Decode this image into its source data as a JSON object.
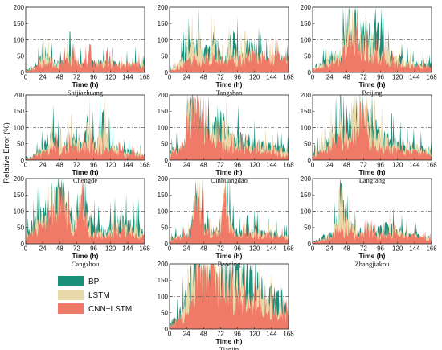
{
  "chart_data": {
    "type": "area",
    "ylabel": "Relative Error (%)",
    "xlabel": "Time (h)",
    "xticks": [
      0,
      24,
      48,
      72,
      96,
      120,
      144,
      168
    ],
    "yticks": [
      0,
      50,
      100,
      150,
      200
    ],
    "xlim": [
      0,
      168
    ],
    "ylim": [
      0,
      200
    ],
    "reference_line": 100,
    "series": [
      {
        "name": "BP",
        "color": "#1a8f7a"
      },
      {
        "name": "LSTM",
        "color": "#ead9a8"
      },
      {
        "name": "CNN−LSTM",
        "color": "#f07a68"
      }
    ],
    "panels": [
      {
        "city": "Shijiazhuang",
        "BP": [
          10,
          15,
          40,
          70,
          35,
          30,
          70,
          40,
          35,
          30,
          35,
          35,
          40,
          30,
          30,
          35,
          40,
          25
        ],
        "LSTM": [
          8,
          12,
          35,
          60,
          30,
          28,
          60,
          35,
          30,
          28,
          30,
          30,
          35,
          28,
          28,
          30,
          35,
          22
        ],
        "CNN−LSTM": [
          5,
          10,
          25,
          40,
          22,
          30,
          45,
          38,
          40,
          42,
          35,
          30,
          32,
          25,
          25,
          28,
          28,
          18
        ]
      },
      {
        "city": "Tangshan",
        "BP": [
          10,
          20,
          60,
          90,
          100,
          60,
          110,
          80,
          60,
          110,
          70,
          80,
          90,
          60,
          50,
          55,
          45,
          40
        ],
        "LSTM": [
          8,
          18,
          50,
          90,
          70,
          55,
          90,
          65,
          55,
          80,
          60,
          60,
          70,
          55,
          45,
          50,
          40,
          35
        ],
        "CNN−LSTM": [
          5,
          12,
          30,
          50,
          40,
          45,
          50,
          45,
          40,
          50,
          45,
          55,
          60,
          55,
          55,
          55,
          50,
          45
        ]
      },
      {
        "city": "Beijing",
        "BP": [
          20,
          30,
          40,
          60,
          60,
          200,
          200,
          150,
          130,
          150,
          80,
          60,
          50,
          40,
          35,
          30,
          30,
          25
        ],
        "LSTM": [
          15,
          25,
          35,
          50,
          60,
          180,
          170,
          120,
          100,
          100,
          70,
          50,
          45,
          35,
          30,
          28,
          25,
          20
        ],
        "CNN−LSTM": [
          10,
          15,
          25,
          35,
          45,
          90,
          130,
          80,
          60,
          60,
          45,
          35,
          30,
          25,
          25,
          22,
          20,
          18
        ]
      },
      {
        "city": "Chengde",
        "BP": [
          10,
          15,
          35,
          60,
          80,
          50,
          60,
          90,
          60,
          130,
          40,
          150,
          60,
          40,
          30,
          30,
          25,
          20
        ],
        "LSTM": [
          8,
          12,
          30,
          50,
          60,
          40,
          50,
          80,
          50,
          110,
          35,
          130,
          50,
          35,
          25,
          25,
          20,
          18
        ],
        "CNN−LSTM": [
          5,
          10,
          20,
          35,
          45,
          40,
          40,
          45,
          40,
          50,
          30,
          40,
          35,
          28,
          22,
          20,
          18,
          15
        ]
      },
      {
        "city": "Qinhuangdao",
        "BP": [
          30,
          40,
          60,
          200,
          200,
          110,
          90,
          140,
          120,
          90,
          80,
          70,
          60,
          55,
          50,
          45,
          40,
          35
        ],
        "LSTM": [
          25,
          35,
          55,
          180,
          200,
          100,
          80,
          120,
          110,
          80,
          70,
          60,
          55,
          50,
          45,
          40,
          35,
          30
        ],
        "CNN−LSTM": [
          20,
          30,
          50,
          180,
          200,
          90,
          70,
          60,
          50,
          40,
          40,
          35,
          30,
          30,
          28,
          25,
          22,
          20
        ]
      },
      {
        "city": "Langfang",
        "BP": [
          20,
          40,
          60,
          100,
          120,
          150,
          160,
          200,
          140,
          110,
          90,
          70,
          60,
          55,
          50,
          45,
          40,
          35
        ],
        "LSTM": [
          15,
          35,
          55,
          90,
          110,
          140,
          150,
          180,
          130,
          100,
          80,
          65,
          55,
          50,
          45,
          40,
          35,
          30
        ],
        "CNN−LSTM": [
          10,
          25,
          40,
          60,
          80,
          70,
          90,
          200,
          60,
          50,
          45,
          40,
          35,
          30,
          30,
          28,
          25,
          22
        ]
      },
      {
        "city": "Cangzhou",
        "BP": [
          30,
          60,
          90,
          120,
          180,
          200,
          110,
          90,
          200,
          80,
          60,
          50,
          60,
          70,
          80,
          60,
          70,
          55
        ],
        "LSTM": [
          25,
          50,
          70,
          100,
          150,
          200,
          90,
          70,
          200,
          60,
          45,
          40,
          45,
          55,
          60,
          45,
          50,
          40
        ],
        "CNN−LSTM": [
          20,
          40,
          60,
          80,
          120,
          200,
          80,
          50,
          200,
          40,
          30,
          28,
          30,
          35,
          40,
          30,
          30,
          25
        ]
      },
      {
        "city": "Baoding",
        "BP": [
          20,
          25,
          30,
          40,
          200,
          60,
          40,
          50,
          150,
          60,
          40,
          40,
          50,
          45,
          40,
          35,
          30,
          28
        ],
        "LSTM": [
          18,
          22,
          28,
          35,
          200,
          55,
          35,
          45,
          140,
          50,
          35,
          35,
          40,
          40,
          35,
          30,
          28,
          25
        ],
        "CNN−LSTM": [
          15,
          20,
          25,
          30,
          190,
          50,
          30,
          40,
          150,
          40,
          30,
          30,
          35,
          30,
          30,
          28,
          25,
          22
        ]
      },
      {
        "city": "Zhangjiakou",
        "BP": [
          10,
          15,
          30,
          40,
          200,
          120,
          50,
          40,
          60,
          40,
          50,
          60,
          50,
          40,
          35,
          30,
          25,
          20
        ],
        "LSTM": [
          8,
          12,
          25,
          35,
          180,
          80,
          40,
          35,
          50,
          35,
          40,
          50,
          40,
          35,
          30,
          25,
          22,
          18
        ],
        "CNN−LSTM": [
          5,
          10,
          20,
          30,
          60,
          40,
          30,
          30,
          40,
          30,
          35,
          40,
          30,
          28,
          25,
          22,
          20,
          15
        ]
      },
      {
        "city": "Tianjin",
        "BP": [
          20,
          40,
          80,
          200,
          200,
          200,
          200,
          200,
          200,
          200,
          200,
          200,
          200,
          150,
          120,
          110,
          100,
          90
        ],
        "LSTM": [
          15,
          30,
          60,
          150,
          200,
          200,
          190,
          180,
          170,
          160,
          150,
          140,
          130,
          110,
          90,
          80,
          70,
          60
        ],
        "CNN−LSTM": [
          10,
          25,
          40,
          100,
          200,
          200,
          200,
          150,
          130,
          110,
          100,
          90,
          80,
          70,
          60,
          55,
          50,
          45
        ]
      }
    ],
    "legend": [
      "BP",
      "LSTM",
      "CNN−LSTM"
    ],
    "legend_position": "bottom-left"
  }
}
